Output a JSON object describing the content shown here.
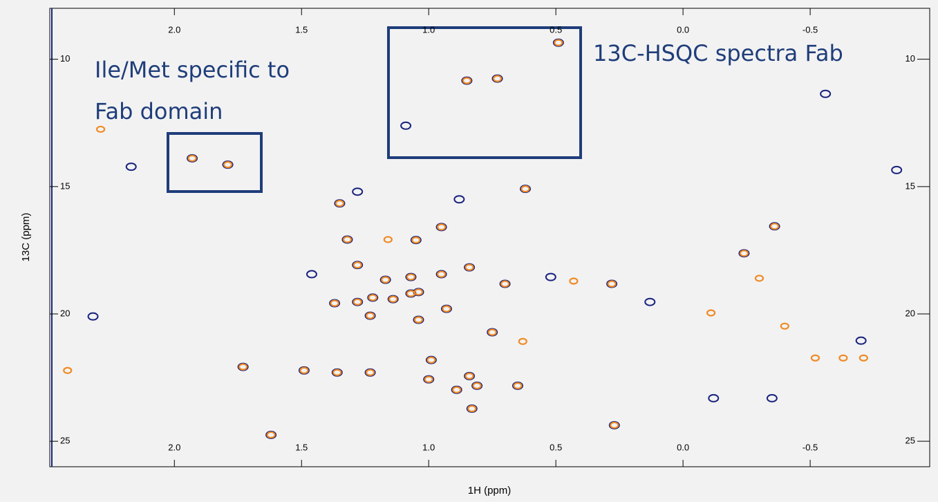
{
  "chart_data": {
    "type": "scatter",
    "xlabel": "1H (ppm)",
    "ylabel": "13C (ppm)",
    "annotations": [
      "Ile/Met specific to",
      "Fab domain",
      "13C-HSQC spectra Fab"
    ],
    "xlim": [
      2.49,
      -0.97
    ],
    "ylim": [
      8,
      26
    ],
    "xticks": [
      {
        "value": 2,
        "label": "2.0"
      },
      {
        "value": 1.5,
        "label": "1.5"
      },
      {
        "value": 1,
        "label": "1.0"
      },
      {
        "value": 0.5,
        "label": "0.5"
      },
      {
        "value": 0,
        "label": "0.0"
      },
      {
        "value": -0.5,
        "label": "-0.5"
      }
    ],
    "yticks": [
      10,
      15,
      20,
      25
    ],
    "series": [
      {
        "color": "#1a237e",
        "x": [
          1.93,
          1.79,
          1.35,
          0.95,
          0.62,
          -0.36,
          -0.24,
          0.28,
          0.85,
          0.73,
          0.49,
          1.32,
          1.05,
          1.28,
          1.17,
          1.07,
          0.95,
          0.84,
          0.7,
          1.07,
          1.22,
          1.37,
          1.28,
          1.23,
          1.04,
          0.93,
          0.75,
          1.49,
          1.36,
          1.23,
          0.99,
          1.0,
          0.84,
          0.81,
          0.89,
          0.65,
          0.83,
          0.27,
          1.62,
          1.73,
          1.04,
          1.14,
          1.09,
          0.88,
          1.28,
          1.46,
          0.13,
          0.52,
          -0.84,
          -0.56,
          2.17,
          2.32,
          -0.35,
          -0.12,
          -0.7
        ],
        "values": [
          13.89,
          14.14,
          15.66,
          16.59,
          15.09,
          16.56,
          17.62,
          18.82,
          10.84,
          10.76,
          9.35,
          17.08,
          17.1,
          18.08,
          18.66,
          18.55,
          18.44,
          18.17,
          18.82,
          19.2,
          19.36,
          19.58,
          19.53,
          20.07,
          20.23,
          19.8,
          20.72,
          22.22,
          22.3,
          22.3,
          21.81,
          22.57,
          22.44,
          22.82,
          22.98,
          22.82,
          23.72,
          24.37,
          24.75,
          22.08,
          19.14,
          19.42,
          12.61,
          15.5,
          15.2,
          18.44,
          19.53,
          18.55,
          14.35,
          11.36,
          14.22,
          20.1,
          23.31,
          23.31,
          21.05
        ]
      },
      {
        "color": "#f08a24",
        "x": [
          1.93,
          1.79,
          1.35,
          0.95,
          0.62,
          -0.36,
          -0.24,
          0.28,
          0.85,
          0.73,
          0.49,
          1.32,
          1.05,
          1.28,
          1.17,
          1.07,
          0.95,
          0.84,
          0.7,
          1.07,
          1.22,
          1.37,
          1.28,
          1.23,
          1.04,
          0.93,
          0.75,
          1.49,
          1.36,
          1.23,
          0.99,
          1.0,
          0.84,
          0.81,
          0.89,
          0.65,
          0.83,
          0.27,
          1.62,
          1.73,
          1.04,
          1.14,
          1.16,
          2.29,
          2.42,
          -0.3,
          -0.11,
          0.63,
          -0.63,
          -0.71,
          -0.52,
          -0.4,
          0.43
        ],
        "values": [
          13.89,
          14.14,
          15.66,
          16.59,
          15.09,
          16.56,
          17.62,
          18.82,
          10.84,
          10.76,
          9.35,
          17.08,
          17.1,
          18.08,
          18.66,
          18.55,
          18.44,
          18.17,
          18.82,
          19.2,
          19.36,
          19.58,
          19.53,
          20.07,
          20.23,
          19.8,
          20.72,
          22.22,
          22.3,
          22.3,
          21.81,
          22.57,
          22.44,
          22.82,
          22.98,
          22.82,
          23.72,
          24.37,
          24.75,
          22.08,
          19.14,
          19.42,
          17.08,
          12.75,
          22.22,
          18.6,
          19.96,
          21.08,
          21.73,
          21.73,
          21.73,
          20.48,
          18.71
        ]
      }
    ]
  }
}
